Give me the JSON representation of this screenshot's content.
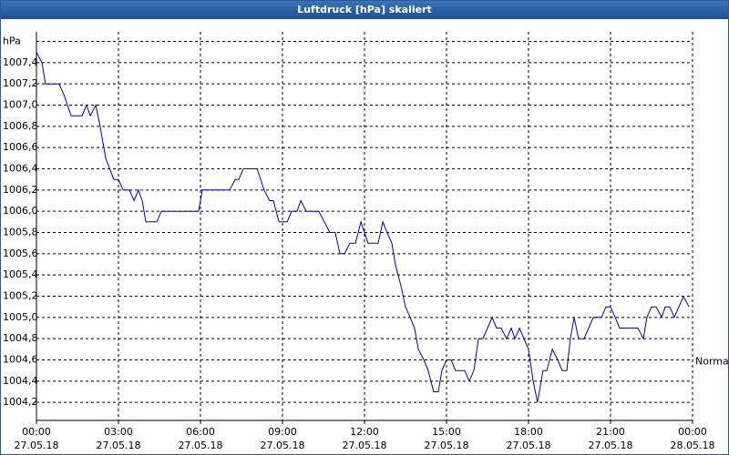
{
  "chart_data": {
    "type": "line",
    "title": "Luftdruck [hPa] skaliert",
    "y_unit": "hPa",
    "xlim": [
      0,
      24
    ],
    "ylim": [
      1004.03,
      1007.69
    ],
    "xticks": [
      {
        "value": 0,
        "label": "00:00"
      },
      {
        "value": 3,
        "label": "03:00"
      },
      {
        "value": 6,
        "label": "06:00"
      },
      {
        "value": 9,
        "label": "09:00"
      },
      {
        "value": 12,
        "label": "12:00"
      },
      {
        "value": 15,
        "label": "15:00"
      },
      {
        "value": 18,
        "label": "18:00"
      },
      {
        "value": 21,
        "label": "21:00"
      },
      {
        "value": 24,
        "label": "00:00"
      }
    ],
    "xtick_dates": [
      "27.05.18",
      "27.05.18",
      "27.05.18",
      "27.05.18",
      "27.05.18",
      "27.05.18",
      "27.05.18",
      "27.05.18",
      "28.05.18"
    ],
    "yticks": [
      {
        "value": 1004.2,
        "label": "1004,2"
      },
      {
        "value": 1004.4,
        "label": "1004,4"
      },
      {
        "value": 1004.6,
        "label": "1004,6"
      },
      {
        "value": 1004.8,
        "label": "1004,8"
      },
      {
        "value": 1005.0,
        "label": "1005,0"
      },
      {
        "value": 1005.2,
        "label": "1005,2"
      },
      {
        "value": 1005.4,
        "label": "1005,4"
      },
      {
        "value": 1005.6,
        "label": "1005,6"
      },
      {
        "value": 1005.8,
        "label": "1005,8"
      },
      {
        "value": 1006.0,
        "label": "1006,0"
      },
      {
        "value": 1006.2,
        "label": "1006,2"
      },
      {
        "value": 1006.4,
        "label": "1006,4"
      },
      {
        "value": 1006.6,
        "label": "1006,6"
      },
      {
        "value": 1006.8,
        "label": "1006,8"
      },
      {
        "value": 1007.0,
        "label": "1007,0"
      },
      {
        "value": 1007.2,
        "label": "1007,2"
      },
      {
        "value": 1007.4,
        "label": "1007,4"
      },
      {
        "value": 1007.6,
        "label": "hPa"
      }
    ],
    "grid": true,
    "annotation": {
      "text": "Normal",
      "y": 1004.6
    },
    "series": [
      {
        "color": "#0000a0",
        "x": [
          0,
          0.2,
          0.33,
          0.83,
          1,
          1.27,
          1.67,
          1.83,
          1.97,
          2.17,
          2.33,
          2.53,
          2.83,
          3,
          3.17,
          3.4,
          3.57,
          3.73,
          3.87,
          4,
          4.4,
          4.57,
          5.93,
          6.07,
          7.07,
          7.27,
          7.4,
          7.57,
          8.07,
          8.33,
          8.53,
          8.67,
          8.87,
          9.17,
          9.33,
          9.53,
          9.67,
          9.87,
          10.33,
          10.53,
          10.73,
          10.93,
          11.1,
          11.27,
          11.47,
          11.67,
          11.87,
          12,
          12.13,
          12.5,
          12.67,
          12.83,
          13,
          13.13,
          13.33,
          13.5,
          13.67,
          13.83,
          13.97,
          14.17,
          14.33,
          14.53,
          14.7,
          14.83,
          15,
          15.17,
          15.33,
          15.67,
          15.83,
          16,
          16.17,
          16.33,
          16.5,
          16.67,
          16.83,
          17,
          17.2,
          17.37,
          17.5,
          17.67,
          17.83,
          18,
          18.17,
          18.33,
          18.53,
          18.67,
          18.87,
          19.07,
          19.23,
          19.4,
          19.53,
          19.67,
          19.83,
          20.03,
          20.2,
          20.37,
          20.67,
          20.83,
          21,
          21.17,
          21.33,
          22,
          22.2,
          22.33,
          22.5,
          22.67,
          22.87,
          23,
          23.17,
          23.33,
          23.5,
          23.67,
          23.87
        ],
        "values": [
          1007.5,
          1007.4,
          1007.2,
          1007.2,
          1007.1,
          1006.9,
          1006.9,
          1007.0,
          1006.9,
          1007.0,
          1006.8,
          1006.5,
          1006.3,
          1006.3,
          1006.2,
          1006.2,
          1006.1,
          1006.2,
          1006.1,
          1005.9,
          1005.9,
          1006.0,
          1006.0,
          1006.2,
          1006.2,
          1006.3,
          1006.3,
          1006.4,
          1006.4,
          1006.2,
          1006.1,
          1006.1,
          1005.9,
          1005.9,
          1006.0,
          1006.0,
          1006.1,
          1006.0,
          1006.0,
          1005.9,
          1005.8,
          1005.8,
          1005.6,
          1005.6,
          1005.7,
          1005.7,
          1005.9,
          1005.8,
          1005.7,
          1005.7,
          1005.9,
          1005.8,
          1005.7,
          1005.5,
          1005.3,
          1005.1,
          1005.0,
          1004.9,
          1004.7,
          1004.6,
          1004.5,
          1004.3,
          1004.3,
          1004.5,
          1004.6,
          1004.6,
          1004.5,
          1004.5,
          1004.4,
          1004.5,
          1004.8,
          1004.8,
          1004.9,
          1005.0,
          1004.9,
          1004.9,
          1004.8,
          1004.9,
          1004.8,
          1004.9,
          1004.8,
          1004.7,
          1004.4,
          1004.2,
          1004.5,
          1004.5,
          1004.7,
          1004.6,
          1004.5,
          1004.5,
          1004.8,
          1005.0,
          1004.8,
          1004.8,
          1004.9,
          1005.0,
          1005.0,
          1005.1,
          1005.1,
          1005.0,
          1004.9,
          1004.9,
          1004.8,
          1005.0,
          1005.1,
          1005.1,
          1005.0,
          1005.1,
          1005.1,
          1005.0,
          1005.1,
          1005.2,
          1005.1
        ]
      }
    ]
  }
}
